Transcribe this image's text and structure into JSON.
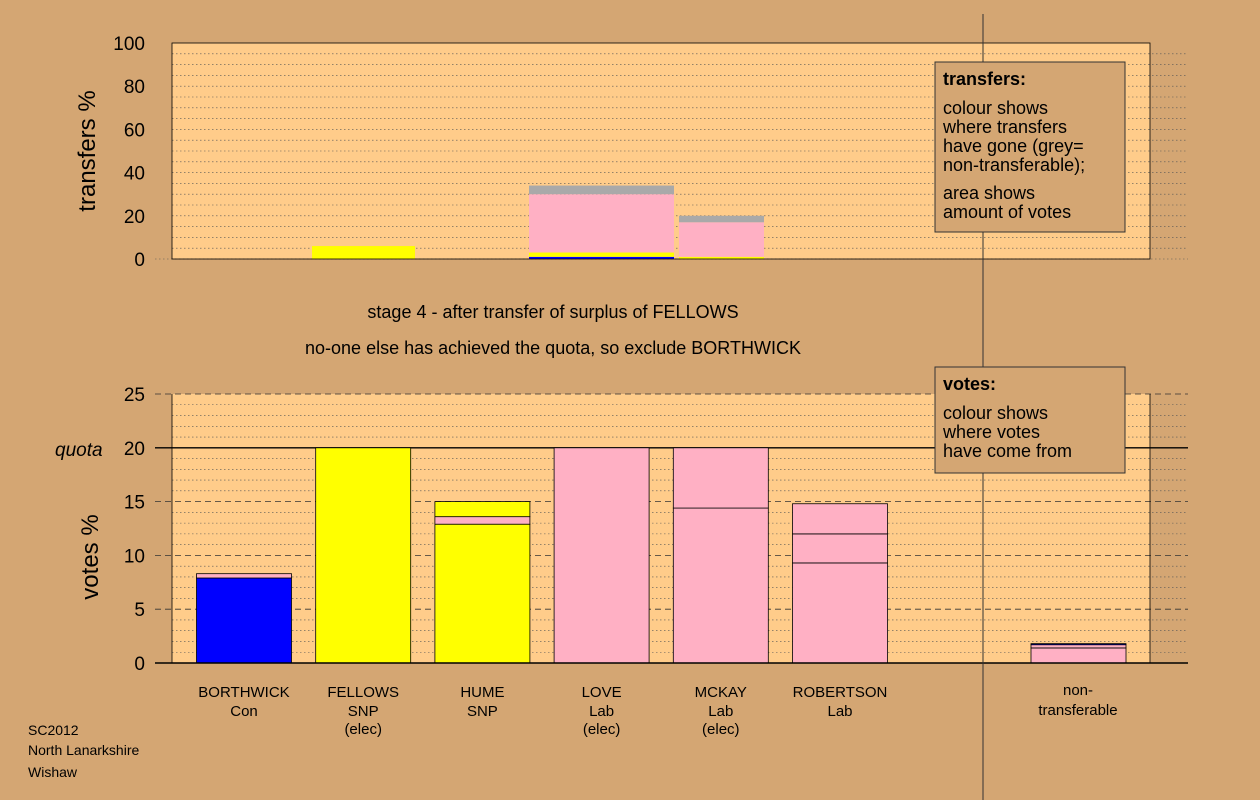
{
  "colors": {
    "background": "#d4a673",
    "panel": "#ffcc8a",
    "Con": "#0000ff",
    "SNP": "#ffff00",
    "Lab": "#ffb0c4",
    "non_transferable": "#a9a9a9"
  },
  "headings": {
    "stage": "stage 4 - after transfer of surplus of FELLOWS",
    "status": "no-one else has achieved the quota, so exclude BORTHWICK"
  },
  "footer": {
    "line1": "SC2012",
    "line2": "North Lanarkshire",
    "line3": "Wishaw"
  },
  "legends": {
    "transfers": {
      "title": "transfers:",
      "lines": [
        "colour shows",
        "where transfers",
        "have gone (grey=",
        "non-transferable);"
      ],
      "lines2": [
        "area shows",
        "amount of votes"
      ]
    },
    "votes": {
      "title": "votes:",
      "lines": [
        "colour shows",
        "where votes",
        "have come from"
      ]
    }
  },
  "chart_data": [
    {
      "type": "bar",
      "stacked": true,
      "ylabel": "transfers %",
      "ylim": [
        0,
        100
      ],
      "yticks": [
        0,
        20,
        40,
        60,
        80,
        100
      ],
      "grid": "dotted",
      "legend": "top-right",
      "bars": [
        {
          "from": "BORTHWICK",
          "segments": []
        },
        {
          "from": "FELLOWS",
          "segments": [
            {
              "party": "SNP",
              "value": 6
            }
          ]
        },
        {
          "from": "HUME",
          "segments": []
        },
        {
          "from": "LOVE",
          "segments": [
            {
              "party": "Con",
              "value": 1
            },
            {
              "party": "SNP",
              "value": 2
            },
            {
              "party": "Lab",
              "value": 27
            },
            {
              "party": "non_transferable",
              "value": 4
            }
          ]
        },
        {
          "from": "MCKAY",
          "segments": [
            {
              "party": "SNP",
              "value": 1
            },
            {
              "party": "Lab",
              "value": 16
            },
            {
              "party": "non_transferable",
              "value": 3
            }
          ]
        },
        {
          "from": "ROBERTSON",
          "segments": []
        }
      ]
    },
    {
      "type": "bar",
      "stacked": true,
      "ylabel": "votes %",
      "ylim": [
        0,
        25
      ],
      "yticks": [
        0,
        5,
        10,
        15,
        20,
        25
      ],
      "quota": 20,
      "quota_label": "quota",
      "grid": "dotted",
      "legend": "top-right",
      "categories": [
        {
          "name": "BORTHWICK",
          "party": "Con",
          "note": ""
        },
        {
          "name": "FELLOWS",
          "party": "SNP",
          "note": "(elec)"
        },
        {
          "name": "HUME",
          "party": "SNP",
          "note": ""
        },
        {
          "name": "LOVE",
          "party": "Lab",
          "note": "(elec)"
        },
        {
          "name": "MCKAY",
          "party": "Lab",
          "note": "(elec)"
        },
        {
          "name": "ROBERTSON",
          "party": "Lab",
          "note": ""
        }
      ],
      "non_transferable_label": [
        "non-",
        "transferable"
      ],
      "bars": [
        {
          "candidate": "BORTHWICK",
          "segments": [
            {
              "party": "Con",
              "value": 7.9
            },
            {
              "party": "Lab",
              "value": 0.4
            }
          ]
        },
        {
          "candidate": "FELLOWS",
          "segments": [
            {
              "party": "SNP",
              "value": 20.0
            }
          ]
        },
        {
          "candidate": "HUME",
          "segments": [
            {
              "party": "SNP",
              "value": 12.9
            },
            {
              "party": "Lab",
              "value": 0.7
            },
            {
              "party": "SNP",
              "value": 1.4
            }
          ]
        },
        {
          "candidate": "LOVE",
          "segments": [
            {
              "party": "Lab",
              "value": 20.0
            }
          ]
        },
        {
          "candidate": "MCKAY",
          "segments": [
            {
              "party": "Lab",
              "value": 14.4
            },
            {
              "party": "Lab",
              "value": 5.6
            }
          ]
        },
        {
          "candidate": "ROBERTSON",
          "segments": [
            {
              "party": "Lab",
              "value": 9.3
            },
            {
              "party": "Lab",
              "value": 2.7
            },
            {
              "party": "Lab",
              "value": 2.8
            }
          ]
        },
        {
          "candidate": "non-transferable",
          "segments": [
            {
              "party": "Lab",
              "value": 1.4
            },
            {
              "party": "Lab",
              "value": 0.3
            },
            {
              "party": "Con",
              "value": 0.1
            }
          ]
        }
      ]
    }
  ]
}
